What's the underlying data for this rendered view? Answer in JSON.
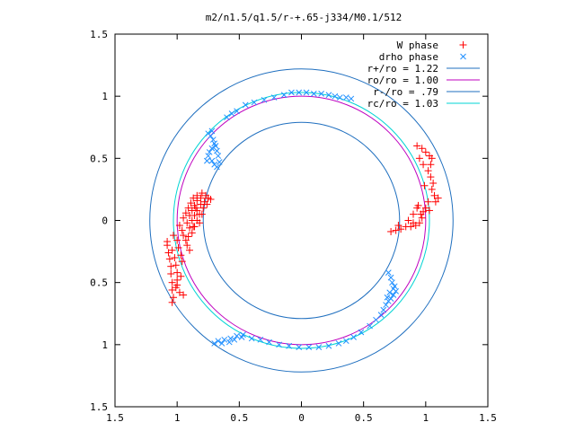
{
  "chart_data": {
    "type": "scatter",
    "title": "m2/n1.5/q1.5/r-+.65-j334/M0.1/512",
    "xlim": [
      -1.5,
      1.5
    ],
    "ylim": [
      -1.5,
      1.5
    ],
    "x_ticks": [
      {
        "value": -1.5,
        "label": "1.5"
      },
      {
        "value": -1.0,
        "label": "1"
      },
      {
        "value": -0.5,
        "label": "0.5"
      },
      {
        "value": 0.0,
        "label": "0"
      },
      {
        "value": 0.5,
        "label": "0.5"
      },
      {
        "value": 1.0,
        "label": "1"
      },
      {
        "value": 1.5,
        "label": "1.5"
      }
    ],
    "y_ticks": [
      {
        "value": 1.5,
        "label": "1.5"
      },
      {
        "value": 1.0,
        "label": "1"
      },
      {
        "value": 0.5,
        "label": "0.5"
      },
      {
        "value": 0.0,
        "label": "0"
      },
      {
        "value": -0.5,
        "label": "0.5"
      },
      {
        "value": -1.0,
        "label": "1"
      },
      {
        "value": -1.5,
        "label": "1.5"
      }
    ],
    "grid": false,
    "legend_position": "top-right",
    "series": [
      {
        "name": "W phase",
        "kind": "points",
        "marker": "plus",
        "color": "#ff0000",
        "points": [
          [
            -1.08,
            -0.2
          ],
          [
            -1.07,
            -0.26
          ],
          [
            -1.06,
            -0.31
          ],
          [
            -1.05,
            -0.37
          ],
          [
            -1.05,
            -0.43
          ],
          [
            -1.04,
            -0.5
          ],
          [
            -1.04,
            -0.56
          ],
          [
            -1.03,
            -0.62
          ],
          [
            -1.04,
            -0.66
          ],
          [
            -1.08,
            -0.17
          ],
          [
            -1.04,
            -0.24
          ],
          [
            -1.02,
            -0.3
          ],
          [
            -1.01,
            -0.36
          ],
          [
            -1.0,
            -0.42
          ],
          [
            -1.0,
            -0.48
          ],
          [
            -1.01,
            -0.54
          ],
          [
            -0.98,
            -0.58
          ],
          [
            -0.95,
            -0.6
          ],
          [
            -1.03,
            -0.12
          ],
          [
            -1.0,
            -0.16
          ],
          [
            -0.99,
            -0.22
          ],
          [
            -0.97,
            -0.28
          ],
          [
            -0.96,
            -0.33
          ],
          [
            -0.98,
            -0.04
          ],
          [
            -0.96,
            -0.08
          ],
          [
            -0.95,
            -0.12
          ],
          [
            -0.93,
            -0.16
          ],
          [
            -0.92,
            -0.2
          ],
          [
            -0.9,
            -0.24
          ],
          [
            -0.95,
            0.02
          ],
          [
            -0.92,
            -0.02
          ],
          [
            -0.9,
            -0.06
          ],
          [
            -0.88,
            -0.1
          ],
          [
            -0.93,
            0.06
          ],
          [
            -0.9,
            0.04
          ],
          [
            -0.88,
            0.0
          ],
          [
            -0.86,
            -0.05
          ],
          [
            -0.91,
            0.1
          ],
          [
            -0.88,
            0.08
          ],
          [
            -0.86,
            0.04
          ],
          [
            -0.84,
            0.0
          ],
          [
            -0.89,
            0.14
          ],
          [
            -0.86,
            0.12
          ],
          [
            -0.84,
            0.08
          ],
          [
            -0.82,
            0.05
          ],
          [
            -0.87,
            0.18
          ],
          [
            -0.84,
            0.16
          ],
          [
            -0.81,
            0.13
          ],
          [
            -0.79,
            0.1
          ],
          [
            -0.84,
            0.2
          ],
          [
            -0.81,
            0.18
          ],
          [
            -0.78,
            0.15
          ],
          [
            -0.76,
            0.13
          ],
          [
            -0.8,
            0.22
          ],
          [
            -0.77,
            0.2
          ],
          [
            -0.75,
            0.18
          ],
          [
            -0.73,
            0.17
          ],
          [
            -0.8,
            0.05
          ],
          [
            -0.82,
            -0.02
          ],
          [
            -0.85,
            0.1
          ],
          [
            -0.87,
            -0.05
          ],
          [
            -0.91,
            -0.13
          ],
          [
            -0.97,
            -0.45
          ],
          [
            -1.0,
            -0.52
          ],
          [
            0.93,
            0.6
          ],
          [
            0.97,
            0.58
          ],
          [
            1.0,
            0.55
          ],
          [
            1.03,
            0.52
          ],
          [
            1.05,
            0.5
          ],
          [
            1.04,
            0.45
          ],
          [
            1.02,
            0.4
          ],
          [
            1.04,
            0.35
          ],
          [
            1.06,
            0.3
          ],
          [
            1.05,
            0.25
          ],
          [
            1.07,
            0.2
          ],
          [
            1.08,
            0.15
          ],
          [
            1.1,
            0.18
          ],
          [
            1.03,
            0.08
          ],
          [
            0.98,
            0.07
          ],
          [
            0.93,
            0.1
          ],
          [
            0.9,
            0.05
          ],
          [
            0.94,
            0.12
          ],
          [
            0.97,
            0.02
          ],
          [
            0.95,
            -0.02
          ],
          [
            0.92,
            -0.04
          ],
          [
            0.88,
            -0.05
          ],
          [
            0.84,
            -0.05
          ],
          [
            0.8,
            -0.07
          ],
          [
            0.76,
            -0.08
          ],
          [
            0.72,
            -0.09
          ],
          [
            0.78,
            -0.04
          ],
          [
            0.95,
            0.5
          ],
          [
            0.98,
            0.45
          ],
          [
            0.99,
            0.28
          ],
          [
            1.0,
            0.1
          ],
          [
            1.02,
            0.15
          ],
          [
            0.96,
            0.05
          ],
          [
            0.9,
            -0.02
          ],
          [
            0.86,
            0.0
          ]
        ]
      },
      {
        "name": "drho phase",
        "kind": "points",
        "marker": "cross",
        "color": "#1f8fff",
        "points": [
          [
            -0.08,
            1.03
          ],
          [
            -0.02,
            1.03
          ],
          [
            0.04,
            1.03
          ],
          [
            0.1,
            1.02
          ],
          [
            0.16,
            1.02
          ],
          [
            0.22,
            1.01
          ],
          [
            0.27,
            1.0
          ],
          [
            0.31,
            0.99
          ],
          [
            0.36,
            0.99
          ],
          [
            0.4,
            0.98
          ],
          [
            -0.14,
            1.01
          ],
          [
            -0.22,
            0.99
          ],
          [
            -0.3,
            0.97
          ],
          [
            -0.38,
            0.95
          ],
          [
            -0.45,
            0.93
          ],
          [
            -0.52,
            0.88
          ],
          [
            -0.56,
            0.86
          ],
          [
            -0.6,
            0.83
          ],
          [
            -0.7,
            0.62
          ],
          [
            -0.72,
            0.58
          ],
          [
            -0.74,
            0.55
          ],
          [
            -0.75,
            0.52
          ],
          [
            -0.76,
            0.48
          ],
          [
            -0.72,
            0.48
          ],
          [
            -0.7,
            0.45
          ],
          [
            -0.68,
            0.43
          ],
          [
            -0.66,
            0.47
          ],
          [
            -0.67,
            0.52
          ],
          [
            -0.68,
            0.56
          ],
          [
            -0.69,
            0.6
          ],
          [
            -0.71,
            0.65
          ],
          [
            -0.73,
            0.68
          ],
          [
            -0.75,
            0.7
          ],
          [
            -0.72,
            0.72
          ],
          [
            0.7,
            -0.42
          ],
          [
            0.72,
            -0.46
          ],
          [
            0.73,
            -0.5
          ],
          [
            0.75,
            -0.53
          ],
          [
            0.76,
            -0.57
          ],
          [
            0.74,
            -0.6
          ],
          [
            0.72,
            -0.63
          ],
          [
            0.7,
            -0.65
          ],
          [
            0.68,
            -0.68
          ],
          [
            0.66,
            -0.72
          ],
          [
            0.64,
            -0.76
          ],
          [
            0.6,
            -0.8
          ],
          [
            0.55,
            -0.85
          ],
          [
            0.48,
            -0.9
          ],
          [
            0.42,
            -0.94
          ],
          [
            0.36,
            -0.97
          ],
          [
            0.3,
            -0.99
          ],
          [
            0.22,
            -1.01
          ],
          [
            0.14,
            -1.02
          ],
          [
            0.06,
            -1.02
          ],
          [
            -0.02,
            -1.02
          ],
          [
            -0.1,
            -1.01
          ],
          [
            -0.18,
            -1.0
          ],
          [
            -0.26,
            -0.98
          ],
          [
            -0.33,
            -0.96
          ],
          [
            -0.4,
            -0.95
          ],
          [
            -0.48,
            -0.94
          ],
          [
            -0.54,
            -0.96
          ],
          [
            -0.58,
            -0.98
          ],
          [
            -0.64,
            -0.99
          ],
          [
            -0.7,
            -0.99
          ],
          [
            -0.67,
            -0.97
          ],
          [
            -0.62,
            -0.96
          ],
          [
            -0.57,
            -0.95
          ],
          [
            -0.52,
            -0.93
          ],
          [
            -0.47,
            -0.92
          ],
          [
            0.74,
            -0.55
          ],
          [
            0.71,
            -0.58
          ],
          [
            0.69,
            -0.62
          ]
        ]
      },
      {
        "name": "r+/ro = 1.22",
        "kind": "circle",
        "radius": 1.22,
        "color": "#1f6fbf"
      },
      {
        "name": "ro/ro = 1.00",
        "kind": "circle",
        "radius": 1.0,
        "color": "#bf00bf"
      },
      {
        "name": "r-/ro = .79",
        "kind": "circle",
        "radius": 0.79,
        "color": "#1f6fbf"
      },
      {
        "name": "rc/ro = 1.03",
        "kind": "circle",
        "radius": 1.03,
        "color": "#00d4d4"
      }
    ]
  }
}
